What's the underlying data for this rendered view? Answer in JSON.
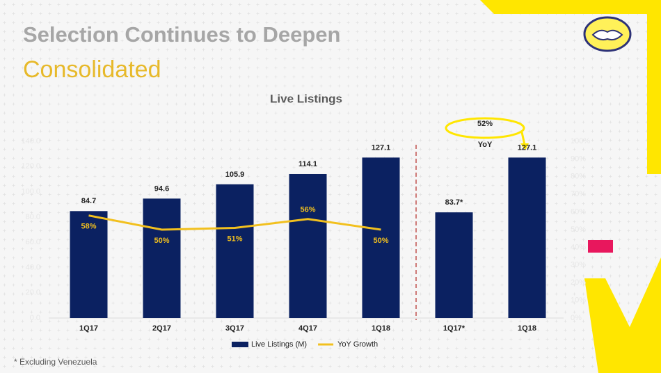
{
  "header": {
    "title": "Selection Continues to Deepen",
    "subtitle": "Consolidated"
  },
  "footnote": "* Excluding Venezuela",
  "chart_data": {
    "type": "bar",
    "title": "Live Listings",
    "categories": [
      "1Q17",
      "2Q17",
      "3Q17",
      "4Q17",
      "1Q18",
      "1Q17*",
      "1Q18"
    ],
    "series": [
      {
        "name": "Live Listings (M)",
        "color": "#0b2161",
        "values": [
          84.7,
          94.6,
          105.9,
          114.1,
          127.1,
          83.7,
          127.1
        ],
        "value_labels": [
          "84.7",
          "94.6",
          "105.9",
          "114.1",
          "127.1",
          "83.7*",
          "127.1"
        ]
      },
      {
        "name": "YoY Growth",
        "type": "line",
        "axis": "y2",
        "color": "#f2c01e",
        "values": [
          58,
          50,
          51,
          56,
          50,
          null,
          null
        ],
        "value_labels": [
          "58%",
          "50%",
          "51%",
          "56%",
          "50%",
          null,
          null
        ]
      }
    ],
    "ylim": [
      0,
      140
    ],
    "yticks": [
      {
        "value": 0,
        "label": "0.0"
      },
      {
        "value": 20,
        "label": "20.0"
      },
      {
        "value": 40,
        "label": "40.0"
      },
      {
        "value": 60,
        "label": "60.0"
      },
      {
        "value": 80,
        "label": "80.0"
      },
      {
        "value": 100,
        "label": "100.0"
      },
      {
        "value": 120,
        "label": "120.0"
      },
      {
        "value": 140,
        "label": "140.0"
      }
    ],
    "y2lim": [
      0,
      100
    ],
    "y2ticks": [
      {
        "value": 0,
        "label": "0%"
      },
      {
        "value": 10,
        "label": "10%"
      },
      {
        "value": 20,
        "label": "20%"
      },
      {
        "value": 30,
        "label": "30%"
      },
      {
        "value": 40,
        "label": "40%"
      },
      {
        "value": 50,
        "label": "50%"
      },
      {
        "value": 60,
        "label": "60%"
      },
      {
        "value": 70,
        "label": "70%"
      },
      {
        "value": 80,
        "label": "80%"
      },
      {
        "value": 90,
        "label": "90%"
      },
      {
        "value": 100,
        "label": "100%"
      }
    ],
    "annotations": [
      "52%",
      "YoY"
    ],
    "legend": "bottom"
  }
}
